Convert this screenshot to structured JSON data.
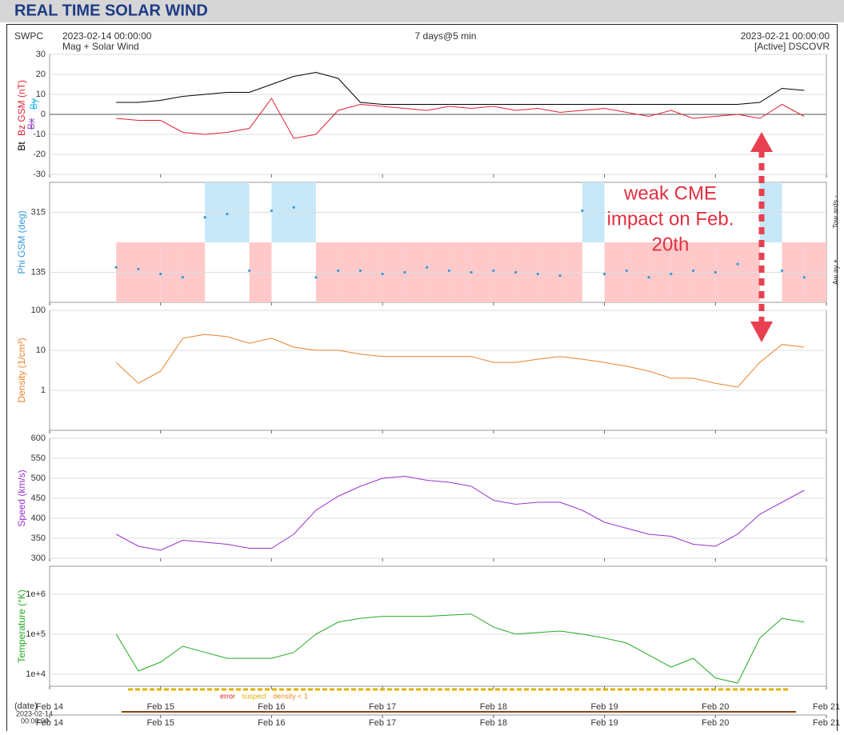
{
  "page_title": "REAL TIME SOLAR WIND",
  "header": {
    "source": "SWPC",
    "start": "2023-02-14 00:00:00",
    "product": "Mag + Solar Wind",
    "span": "7 days@5 min",
    "end": "2023-02-21 00:00:00",
    "spacecraft": "[Active] DSCOVR"
  },
  "annotation": {
    "lines": [
      "weak CME",
      "impact on Feb.",
      "20th"
    ]
  },
  "time_axis": {
    "xlim": [
      0,
      7
    ],
    "xticks": [
      {
        "value": 0,
        "label": "Feb 14"
      },
      {
        "value": 1,
        "label": "Feb 15"
      },
      {
        "value": 2,
        "label": "Feb 16"
      },
      {
        "value": 3,
        "label": "Feb 17"
      },
      {
        "value": 4,
        "label": "Feb 18"
      },
      {
        "value": 5,
        "label": "Feb 19"
      },
      {
        "value": 6,
        "label": "Feb 20"
      },
      {
        "value": 7,
        "label": "Feb 21"
      }
    ]
  },
  "footer": {
    "date_label": "(date)",
    "start_date": "2023-02-14",
    "start_time": "00:00:00",
    "flags": [
      {
        "name": "error",
        "color": "#e02020"
      },
      {
        "name": "suspect",
        "color": "#e0b000"
      },
      {
        "name": "density < 1",
        "color": "#e88a20"
      }
    ]
  },
  "chart_data": [
    {
      "type": "line",
      "grid": true,
      "ylim": [
        -30,
        30
      ],
      "yticks": [
        -30,
        -20,
        -10,
        0,
        10,
        20,
        30
      ],
      "x": [
        0.6,
        0.8,
        1,
        1.2,
        1.4,
        1.6,
        1.8,
        2,
        2.2,
        2.4,
        2.6,
        2.8,
        3,
        3.2,
        3.4,
        3.6,
        3.8,
        4,
        4.2,
        4.4,
        4.6,
        4.8,
        5,
        5.2,
        5.4,
        5.6,
        5.8,
        6,
        6.2,
        6.4,
        6.6,
        6.8
      ],
      "series": [
        {
          "name": "Bt",
          "color": "#000000",
          "values": [
            6,
            6,
            7,
            9,
            10,
            11,
            11,
            15,
            19,
            21,
            18,
            6,
            5,
            5,
            5,
            5,
            5,
            5,
            5,
            5,
            5,
            5,
            5,
            5,
            5,
            5,
            5,
            5,
            5,
            6,
            13,
            12
          ]
        },
        {
          "name": "Bz GSM (nT)",
          "color": "#e02030",
          "values": [
            -2,
            -3,
            -3,
            -9,
            -10,
            -9,
            -7,
            8,
            -12,
            -10,
            2,
            5,
            4,
            3,
            2,
            4,
            3,
            4,
            2,
            3,
            1,
            2,
            3,
            1,
            -1,
            2,
            -2,
            -1,
            0,
            -2,
            5,
            -1
          ]
        }
      ],
      "inactive_series": [
        {
          "name": "Bx",
          "color": "#9955cc"
        },
        {
          "name": "By",
          "color": "#33bbee"
        }
      ]
    },
    {
      "type": "scatter",
      "grid": true,
      "ylabel": "Phi GSM (deg)",
      "ylim": [
        45,
        405
      ],
      "yticks": [
        135,
        315
      ],
      "sector_labels": [
        "Tow ards -",
        "Aw ay +"
      ],
      "x": [
        0.6,
        0.8,
        1,
        1.2,
        1.4,
        1.6,
        1.8,
        2,
        2.2,
        2.4,
        2.6,
        2.8,
        3,
        3.2,
        3.4,
        3.6,
        3.8,
        4,
        4.2,
        4.4,
        4.6,
        4.8,
        5,
        5.2,
        5.4,
        5.6,
        5.8,
        6,
        6.2,
        6.4,
        6.6,
        6.8
      ],
      "series": [
        {
          "name": "Phi GSM",
          "color": "#3399dd",
          "values": [
            150,
            145,
            130,
            120,
            300,
            310,
            140,
            320,
            330,
            120,
            140,
            140,
            130,
            135,
            150,
            140,
            135,
            140,
            135,
            130,
            125,
            320,
            130,
            140,
            120,
            130,
            140,
            135,
            160,
            300,
            140,
            120
          ]
        }
      ]
    },
    {
      "type": "line",
      "grid": true,
      "log": true,
      "ylabel": "Density (1/cm³)",
      "ylim": [
        0.1,
        100
      ],
      "yticks": [
        1,
        10,
        100
      ],
      "x": [
        0.6,
        0.8,
        1,
        1.2,
        1.4,
        1.6,
        1.8,
        2,
        2.2,
        2.4,
        2.6,
        2.8,
        3,
        3.2,
        3.4,
        3.6,
        3.8,
        4,
        4.2,
        4.4,
        4.6,
        4.8,
        5,
        5.2,
        5.4,
        5.6,
        5.8,
        6,
        6.2,
        6.4,
        6.6,
        6.8
      ],
      "series": [
        {
          "name": "Density",
          "color": "#e8822a",
          "values": [
            5,
            1.5,
            3,
            20,
            25,
            22,
            15,
            20,
            12,
            10,
            10,
            8,
            7,
            7,
            7,
            7,
            7,
            5,
            5,
            6,
            7,
            6,
            5,
            4,
            3,
            2,
            2,
            1.5,
            1.2,
            5,
            14,
            12
          ]
        }
      ]
    },
    {
      "type": "line",
      "grid": true,
      "ylabel": "Speed (km/s)",
      "ylim": [
        300,
        600
      ],
      "yticks": [
        300,
        350,
        400,
        450,
        500,
        550,
        600
      ],
      "x": [
        0.6,
        0.8,
        1,
        1.2,
        1.4,
        1.6,
        1.8,
        2,
        2.2,
        2.4,
        2.6,
        2.8,
        3,
        3.2,
        3.4,
        3.6,
        3.8,
        4,
        4.2,
        4.4,
        4.6,
        4.8,
        5,
        5.2,
        5.4,
        5.6,
        5.8,
        6,
        6.2,
        6.4,
        6.6,
        6.8
      ],
      "series": [
        {
          "name": "Speed",
          "color": "#9933cc",
          "values": [
            360,
            330,
            320,
            345,
            340,
            335,
            325,
            325,
            360,
            420,
            455,
            480,
            500,
            505,
            495,
            490,
            480,
            445,
            435,
            440,
            440,
            420,
            390,
            375,
            360,
            355,
            335,
            330,
            360,
            410,
            440,
            470
          ]
        }
      ]
    },
    {
      "type": "line",
      "grid": true,
      "log": true,
      "ylabel": "Temperature (°K)",
      "ylim": [
        5000,
        5000000
      ],
      "yticks": [
        {
          "value": 10000,
          "label": "1e+4"
        },
        {
          "value": 100000,
          "label": "1e+5"
        },
        {
          "value": 1000000,
          "label": "1e+6"
        }
      ],
      "x": [
        0.6,
        0.8,
        1,
        1.2,
        1.4,
        1.6,
        1.8,
        2,
        2.2,
        2.4,
        2.6,
        2.8,
        3,
        3.2,
        3.4,
        3.6,
        3.8,
        4,
        4.2,
        4.4,
        4.6,
        4.8,
        5,
        5.2,
        5.4,
        5.6,
        5.8,
        6,
        6.2,
        6.4,
        6.6,
        6.8
      ],
      "series": [
        {
          "name": "Temperature",
          "color": "#22aa22",
          "values": [
            100000,
            12000,
            20000,
            50000,
            35000,
            25000,
            25000,
            25000,
            35000,
            100000,
            200000,
            250000,
            280000,
            280000,
            280000,
            300000,
            320000,
            150000,
            100000,
            110000,
            120000,
            100000,
            80000,
            60000,
            30000,
            15000,
            25000,
            8000,
            6000,
            80000,
            250000,
            200000
          ]
        }
      ]
    }
  ]
}
